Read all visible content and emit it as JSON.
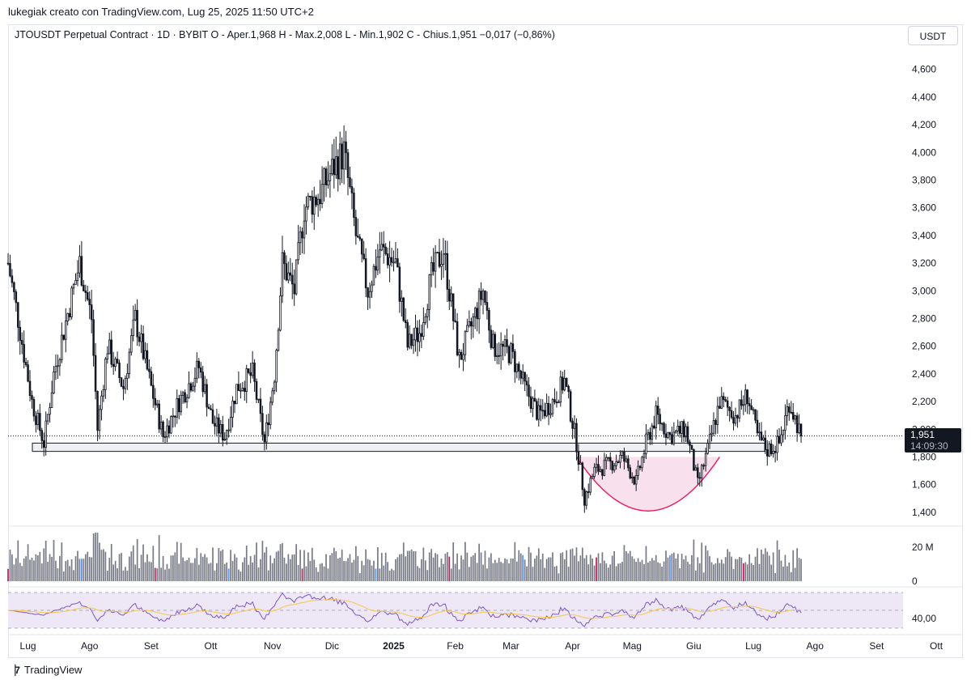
{
  "header": {
    "attribution": "lukegiak creato con TradingView.com, Lug 25, 2025 11:50 UTC+2",
    "legend": "JTOUSDT Perpetual Contract · 1D · BYBIT  O - Aper.1,968  H - Max.2,008  L - Min.1,902  C - Chius.1,951  −0,017 (−0,86%)",
    "unit": "USDT"
  },
  "last_price": {
    "value": "1,951",
    "countdown": "14:09:30"
  },
  "footer": {
    "brand": "TradingView"
  },
  "colors": {
    "up": "#131722",
    "highlight_fill": "#f8e1ec",
    "highlight_stroke": "#e91e63",
    "rsi_line": "#7e57c2",
    "rsi_ma": "#f7c64b",
    "rsi_band": "#ede7f6"
  },
  "chart_data": [
    {
      "type": "candlestick",
      "title": "JTOUSDT Perpetual Contract · 1D · BYBIT",
      "y_axis": {
        "ylim": [
          1.3,
          4.75
        ],
        "ticks": [
          "4,600",
          "4,400",
          "4,200",
          "4,000",
          "3,800",
          "3,600",
          "3,400",
          "3,200",
          "3,000",
          "2,800",
          "2,600",
          "2,400",
          "2,200",
          "2,000",
          "1,800",
          "1,600",
          "1,400"
        ],
        "values": [
          4.6,
          4.4,
          4.2,
          4.0,
          3.8,
          3.6,
          3.4,
          3.2,
          3.0,
          2.8,
          2.6,
          2.4,
          2.2,
          2.0,
          1.8,
          1.6,
          1.4
        ]
      },
      "x_axis": {
        "ticks": [
          "Lug",
          "Ago",
          "Set",
          "Ott",
          "Nov",
          "Dic",
          "2025",
          "Feb",
          "Mar",
          "Apr",
          "Mag",
          "Giu",
          "Lug",
          "Ago",
          "Set",
          "Ott"
        ]
      },
      "anchors": [
        [
          "2024-06-21",
          3.2
        ],
        [
          "2024-06-26",
          2.8
        ],
        [
          "2024-07-03",
          2.2
        ],
        [
          "2024-07-09",
          1.9
        ],
        [
          "2024-07-14",
          2.4
        ],
        [
          "2024-07-22",
          2.9
        ],
        [
          "2024-07-27",
          3.2
        ],
        [
          "2024-08-02",
          2.8
        ],
        [
          "2024-08-05",
          2.0
        ],
        [
          "2024-08-10",
          2.6
        ],
        [
          "2024-08-18",
          2.3
        ],
        [
          "2024-08-24",
          2.8
        ],
        [
          "2024-09-01",
          2.3
        ],
        [
          "2024-09-07",
          1.95
        ],
        [
          "2024-09-15",
          2.2
        ],
        [
          "2024-09-25",
          2.45
        ],
        [
          "2024-10-02",
          2.05
        ],
        [
          "2024-10-08",
          1.95
        ],
        [
          "2024-10-14",
          2.3
        ],
        [
          "2024-10-22",
          2.4
        ],
        [
          "2024-10-28",
          1.9
        ],
        [
          "2024-11-02",
          2.4
        ],
        [
          "2024-11-06",
          3.2
        ],
        [
          "2024-11-12",
          3.0
        ],
        [
          "2024-11-17",
          3.6
        ],
        [
          "2024-11-25",
          3.7
        ],
        [
          "2024-12-02",
          3.9
        ],
        [
          "2024-12-07",
          4.0
        ],
        [
          "2024-12-13",
          3.4
        ],
        [
          "2024-12-19",
          3.0
        ],
        [
          "2024-12-25",
          3.3
        ],
        [
          "2025-01-02",
          3.2
        ],
        [
          "2025-01-08",
          2.6
        ],
        [
          "2025-01-14",
          2.7
        ],
        [
          "2025-01-20",
          3.1
        ],
        [
          "2025-01-26",
          3.3
        ],
        [
          "2025-02-03",
          2.5
        ],
        [
          "2025-02-08",
          2.7
        ],
        [
          "2025-02-15",
          3.0
        ],
        [
          "2025-02-20",
          2.6
        ],
        [
          "2025-03-01",
          2.55
        ],
        [
          "2025-03-08",
          2.3
        ],
        [
          "2025-03-15",
          2.1
        ],
        [
          "2025-03-22",
          2.2
        ],
        [
          "2025-03-28",
          2.35
        ],
        [
          "2025-04-03",
          1.9
        ],
        [
          "2025-04-07",
          1.5
        ],
        [
          "2025-04-12",
          1.7
        ],
        [
          "2025-04-20",
          1.75
        ],
        [
          "2025-04-26",
          1.8
        ],
        [
          "2025-05-03",
          1.62
        ],
        [
          "2025-05-08",
          1.9
        ],
        [
          "2025-05-13",
          2.1
        ],
        [
          "2025-05-20",
          1.95
        ],
        [
          "2025-05-28",
          2.0
        ],
        [
          "2025-06-03",
          1.6
        ],
        [
          "2025-06-08",
          1.85
        ],
        [
          "2025-06-14",
          2.2
        ],
        [
          "2025-06-22",
          2.1
        ],
        [
          "2025-06-28",
          2.25
        ],
        [
          "2025-07-03",
          1.95
        ],
        [
          "2025-07-08",
          1.85
        ],
        [
          "2025-07-14",
          1.9
        ],
        [
          "2025-07-19",
          2.2
        ],
        [
          "2025-07-25",
          1.951
        ]
      ],
      "current_price": 1.951,
      "support_zone": [
        1.84,
        1.9
      ],
      "highlight": "cup"
    },
    {
      "type": "bar",
      "series": [
        {
          "name": "Volume"
        }
      ],
      "y_axis": {
        "ticks": [
          "20 M",
          "0"
        ],
        "values": [
          20000000,
          0
        ]
      }
    },
    {
      "type": "line",
      "series": [
        {
          "name": "RSI"
        },
        {
          "name": "RSI MA"
        }
      ],
      "y_axis": {
        "ticks": [
          "40,00"
        ],
        "values": [
          40
        ]
      },
      "bands": [
        30,
        50,
        70
      ]
    }
  ]
}
